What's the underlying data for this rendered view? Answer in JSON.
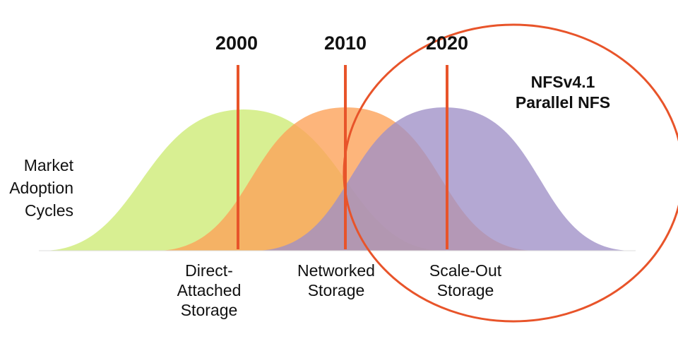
{
  "y_axis_label": [
    "Market",
    "Adoption",
    "Cycles"
  ],
  "eras": [
    {
      "year": "2000",
      "label": [
        "Direct-",
        "Attached",
        "Storage"
      ]
    },
    {
      "year": "2010",
      "label": [
        "Networked",
        "Storage"
      ]
    },
    {
      "year": "2020",
      "label": [
        "Scale-Out",
        "Storage"
      ]
    }
  ],
  "callout": [
    "NFSv4.1",
    "Parallel NFS"
  ]
}
